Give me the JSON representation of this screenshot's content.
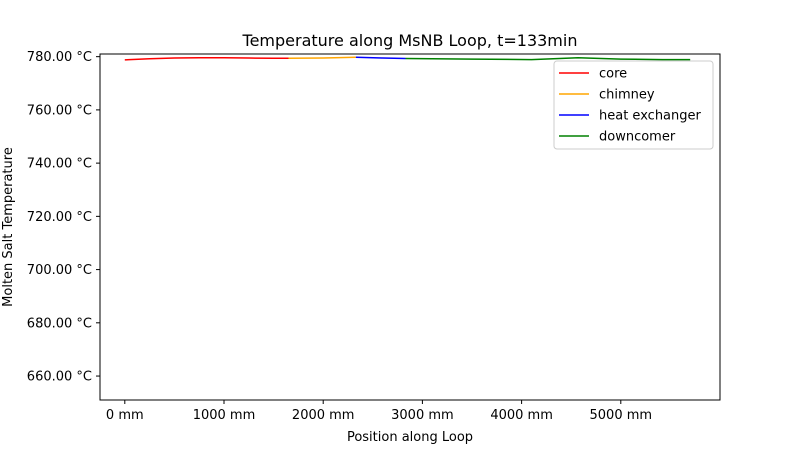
{
  "chart_data": {
    "type": "line",
    "title": "Temperature along MsNB Loop, t=133min",
    "xlabel": "Position along Loop",
    "ylabel": "Molten Salt Temperature",
    "xlim": [
      -250,
      6000
    ],
    "ylim": [
      651,
      781
    ],
    "x_ticks": [
      0,
      1000,
      2000,
      3000,
      4000,
      5000
    ],
    "x_tick_labels": [
      "0 mm",
      "1000 mm",
      "2000 mm",
      "3000 mm",
      "4000 mm",
      "5000 mm"
    ],
    "y_ticks": [
      660,
      680,
      700,
      720,
      740,
      760,
      780
    ],
    "y_tick_labels": [
      "660.00 °C",
      "680.00 °C",
      "700.00 °C",
      "720.00 °C",
      "740.00 °C",
      "760.00 °C",
      "780.00 °C"
    ],
    "grid": false,
    "legend_position": "top-right",
    "series": [
      {
        "name": "core",
        "color": "#ff0000",
        "x": [
          0,
          250,
          500,
          750,
          1000,
          1250,
          1500,
          1650
        ],
        "y": [
          778.8,
          779.2,
          779.5,
          779.6,
          779.6,
          779.5,
          779.4,
          779.4
        ]
      },
      {
        "name": "chimney",
        "color": "#ffa500",
        "x": [
          1650,
          2000,
          2330
        ],
        "y": [
          779.4,
          779.5,
          779.8
        ]
      },
      {
        "name": "heat exchanger",
        "color": "#0000ff",
        "x": [
          2330,
          2600,
          2830
        ],
        "y": [
          779.8,
          779.5,
          779.3
        ]
      },
      {
        "name": "downcomer",
        "color": "#008000",
        "x": [
          2830,
          3500,
          4100,
          4570,
          5000,
          5420,
          5700
        ],
        "y": [
          779.3,
          779.1,
          778.9,
          779.6,
          779.1,
          778.9,
          778.9
        ]
      }
    ]
  }
}
